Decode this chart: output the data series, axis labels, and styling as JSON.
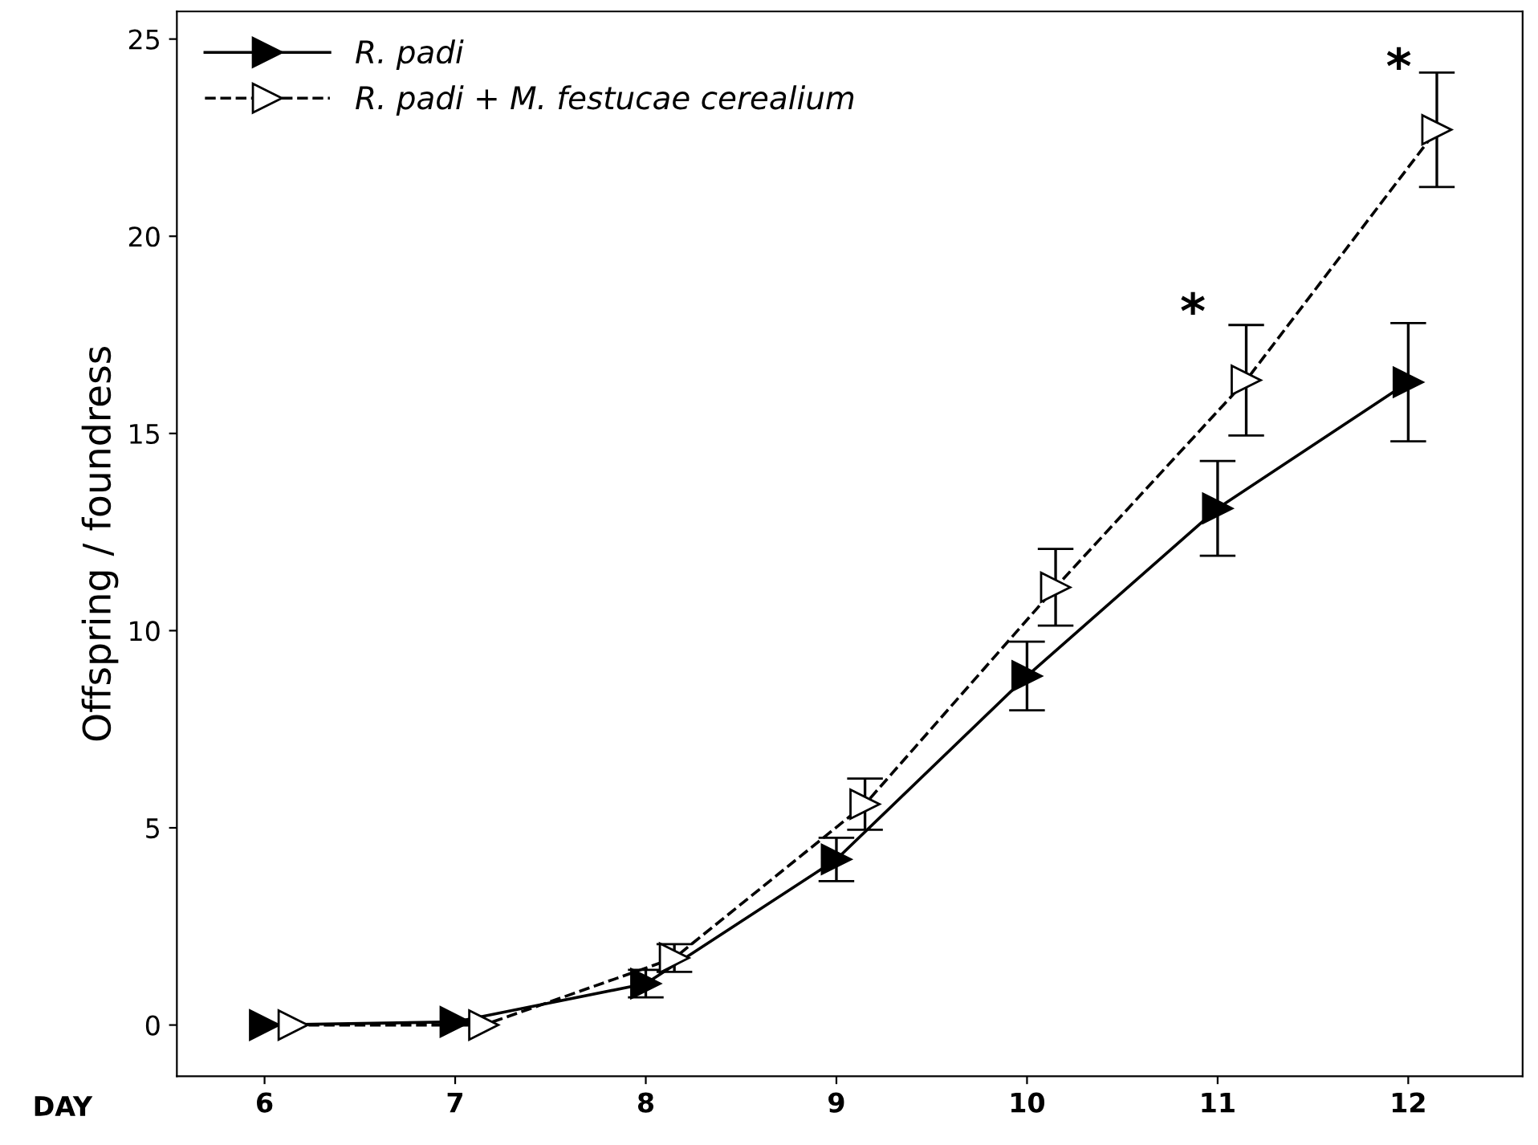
{
  "chart_data": {
    "type": "line",
    "xlabel": "DAY",
    "ylabel": "Offspring / foundress",
    "xlim": [
      5.54,
      12.6
    ],
    "xticks": [
      6,
      7,
      8,
      9,
      10,
      11,
      12
    ],
    "ylim": [
      -1.3,
      25.7
    ],
    "yticks": [
      0,
      5,
      10,
      15,
      20,
      25
    ],
    "legend": "top left",
    "grid": false,
    "series": [
      {
        "name": "R. padi",
        "color": "#000000",
        "marker": "triangle",
        "line_style": "solid",
        "x": [
          6,
          7,
          8,
          9,
          10,
          11,
          12
        ],
        "values": [
          0,
          0.08,
          1.05,
          4.2,
          8.85,
          13.1,
          16.3
        ],
        "errors": [
          null,
          null,
          0.35,
          0.55,
          0.87,
          1.2,
          1.5
        ]
      },
      {
        "name": "R. padi + M. festucae cerealium",
        "color": "#000000",
        "marker": "triangle",
        "line_style": "dashed",
        "x": [
          6.15,
          7.15,
          8.15,
          9.15,
          10.15,
          11.15,
          12.15
        ],
        "values": [
          0,
          0,
          1.7,
          5.6,
          11.1,
          16.35,
          22.7
        ],
        "errors": [
          null,
          null,
          0.35,
          0.65,
          0.97,
          1.4,
          1.45
        ]
      }
    ],
    "annotations": [
      "*",
      "*"
    ]
  }
}
